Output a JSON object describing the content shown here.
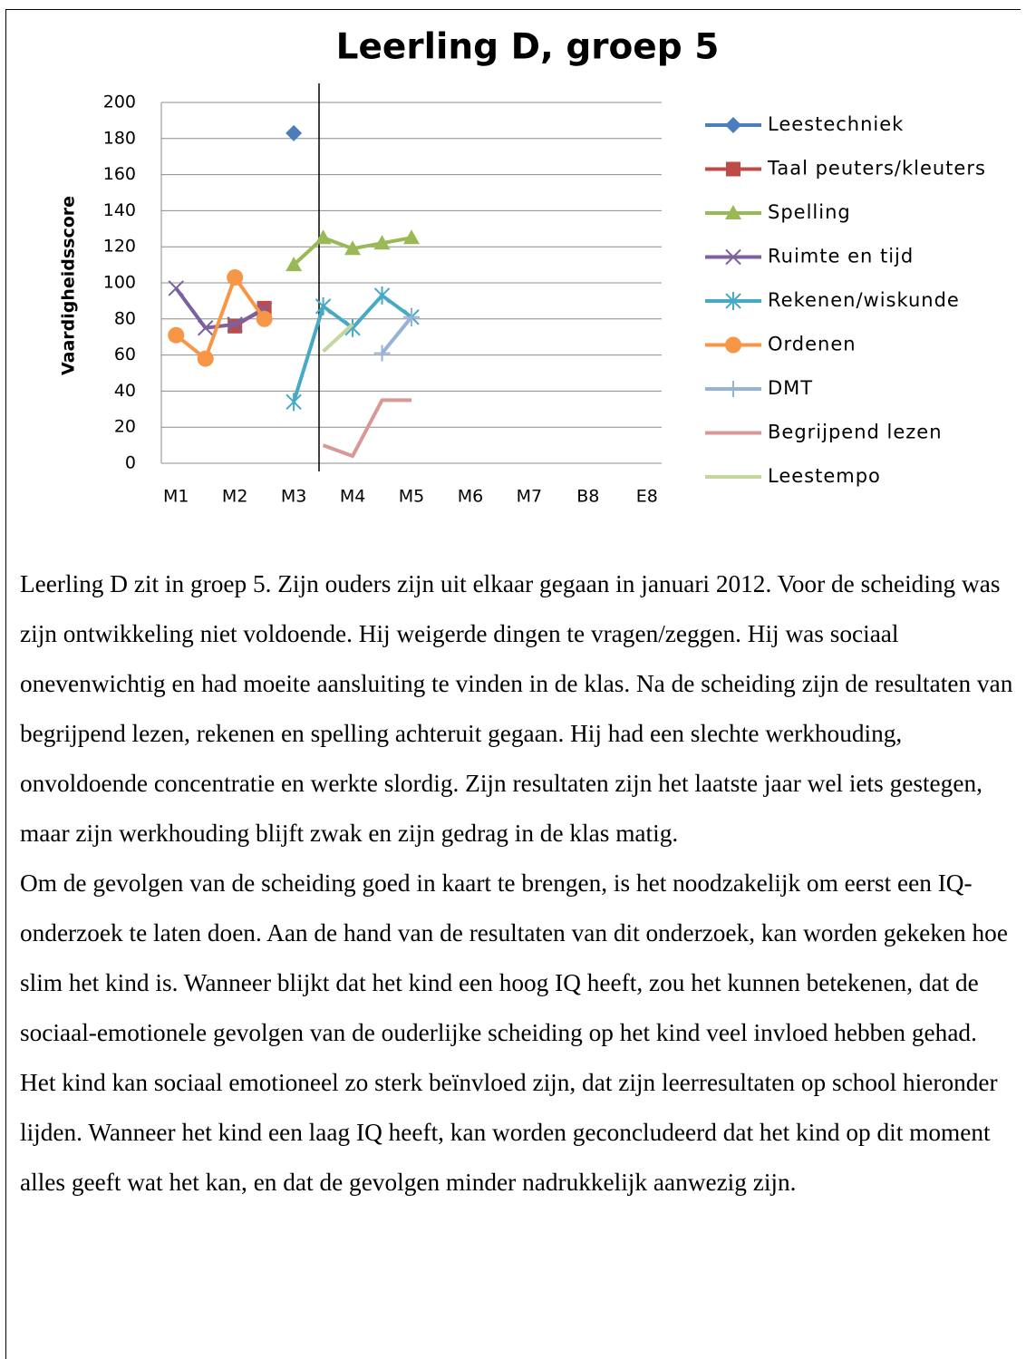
{
  "chart_data": {
    "type": "line",
    "title": "Leerling D, groep 5",
    "y_label": "Vaardigheidsscore",
    "categories": [
      "M1",
      null,
      "M2",
      null,
      "M3",
      null,
      "M4",
      null,
      "M5",
      null,
      "M6",
      null,
      "M7",
      null,
      "B8",
      null,
      "E8"
    ],
    "ylim": [
      0,
      200
    ],
    "yticks": [
      0,
      20,
      40,
      60,
      80,
      100,
      120,
      140,
      160,
      180,
      200
    ],
    "grid": true,
    "series": [
      {
        "name": "Leestechniek",
        "color": "#4a7ebb",
        "marker": "diamond",
        "values": [
          null,
          null,
          null,
          null,
          183,
          null,
          null,
          null,
          null,
          null,
          null,
          null,
          null,
          null,
          null,
          null,
          null
        ]
      },
      {
        "name": "Taal peuters/kleuters",
        "color": "#be4b48",
        "marker": "square",
        "values": [
          null,
          null,
          76,
          86,
          null,
          null,
          null,
          null,
          null,
          null,
          null,
          null,
          null,
          null,
          null,
          null,
          null
        ]
      },
      {
        "name": "Spelling",
        "color": "#98b954",
        "marker": "triangle",
        "values": [
          null,
          null,
          null,
          null,
          110,
          125,
          119,
          122,
          125,
          null,
          null,
          null,
          null,
          null,
          null,
          null,
          null
        ]
      },
      {
        "name": "Ruimte en tijd",
        "color": "#7d60a0",
        "marker": "x",
        "values": [
          97,
          75,
          77,
          85,
          null,
          null,
          null,
          null,
          null,
          null,
          null,
          null,
          null,
          null,
          null,
          null,
          null
        ]
      },
      {
        "name": "Rekenen/wiskunde",
        "color": "#46aac5",
        "marker": "star",
        "values": [
          null,
          null,
          null,
          null,
          34,
          87,
          75,
          93,
          81,
          null,
          null,
          null,
          null,
          null,
          null,
          null,
          null
        ]
      },
      {
        "name": "Ordenen",
        "color": "#f79646",
        "marker": "circle",
        "values": [
          71,
          58,
          103,
          80,
          null,
          null,
          null,
          null,
          null,
          null,
          null,
          null,
          null,
          null,
          null,
          null,
          null
        ]
      },
      {
        "name": "DMT",
        "color": "#95b3d7",
        "marker": "plus",
        "values": [
          null,
          null,
          null,
          null,
          null,
          null,
          null,
          61,
          81,
          null,
          null,
          null,
          null,
          null,
          null,
          null,
          null
        ]
      },
      {
        "name": "Begrijpend lezen",
        "color": "#d99795",
        "marker": "none",
        "values": [
          null,
          null,
          null,
          null,
          null,
          10,
          4,
          35,
          35,
          null,
          null,
          null,
          null,
          null,
          null,
          null,
          null
        ]
      },
      {
        "name": "Leestempo",
        "color": "#c3d69b",
        "marker": "none",
        "values": [
          null,
          null,
          null,
          null,
          null,
          62,
          77,
          null,
          null,
          null,
          null,
          null,
          null,
          null,
          null,
          null,
          null
        ]
      }
    ]
  },
  "paragraphs": [
    "Leerling D zit in groep 5. Zijn ouders zijn uit elkaar gegaan in januari 2012. Voor de scheiding was zijn ontwikkeling niet voldoende. Hij weigerde dingen te vragen/zeggen. Hij was sociaal onevenwichtig en had moeite aansluiting te vinden in de klas. Na de scheiding zijn de resultaten van begrijpend lezen, rekenen en spelling achteruit gegaan. Hij had een slechte werkhouding, onvoldoende concentratie en werkte slordig. Zijn resultaten zijn het laatste jaar wel iets gestegen, maar zijn werkhouding blijft zwak en zijn gedrag in de klas matig.",
    "Om de gevolgen van de scheiding goed in kaart te brengen, is het noodzakelijk om eerst een IQ-onderzoek te laten doen. Aan de hand van de resultaten van dit onderzoek, kan worden gekeken hoe slim het kind is. Wanneer blijkt dat het kind een hoog IQ heeft, zou het kunnen betekenen, dat de sociaal-emotionele gevolgen van de ouderlijke scheiding op het kind veel invloed hebben gehad. Het kind kan sociaal emotioneel zo sterk beïnvloed zijn, dat zijn leerresultaten op school hieronder lijden. Wanneer het kind een laag IQ heeft, kan worden geconcludeerd dat het kind op dit moment alles geeft wat het kan, en dat de gevolgen minder nadrukkelijk aanwezig zijn."
  ]
}
